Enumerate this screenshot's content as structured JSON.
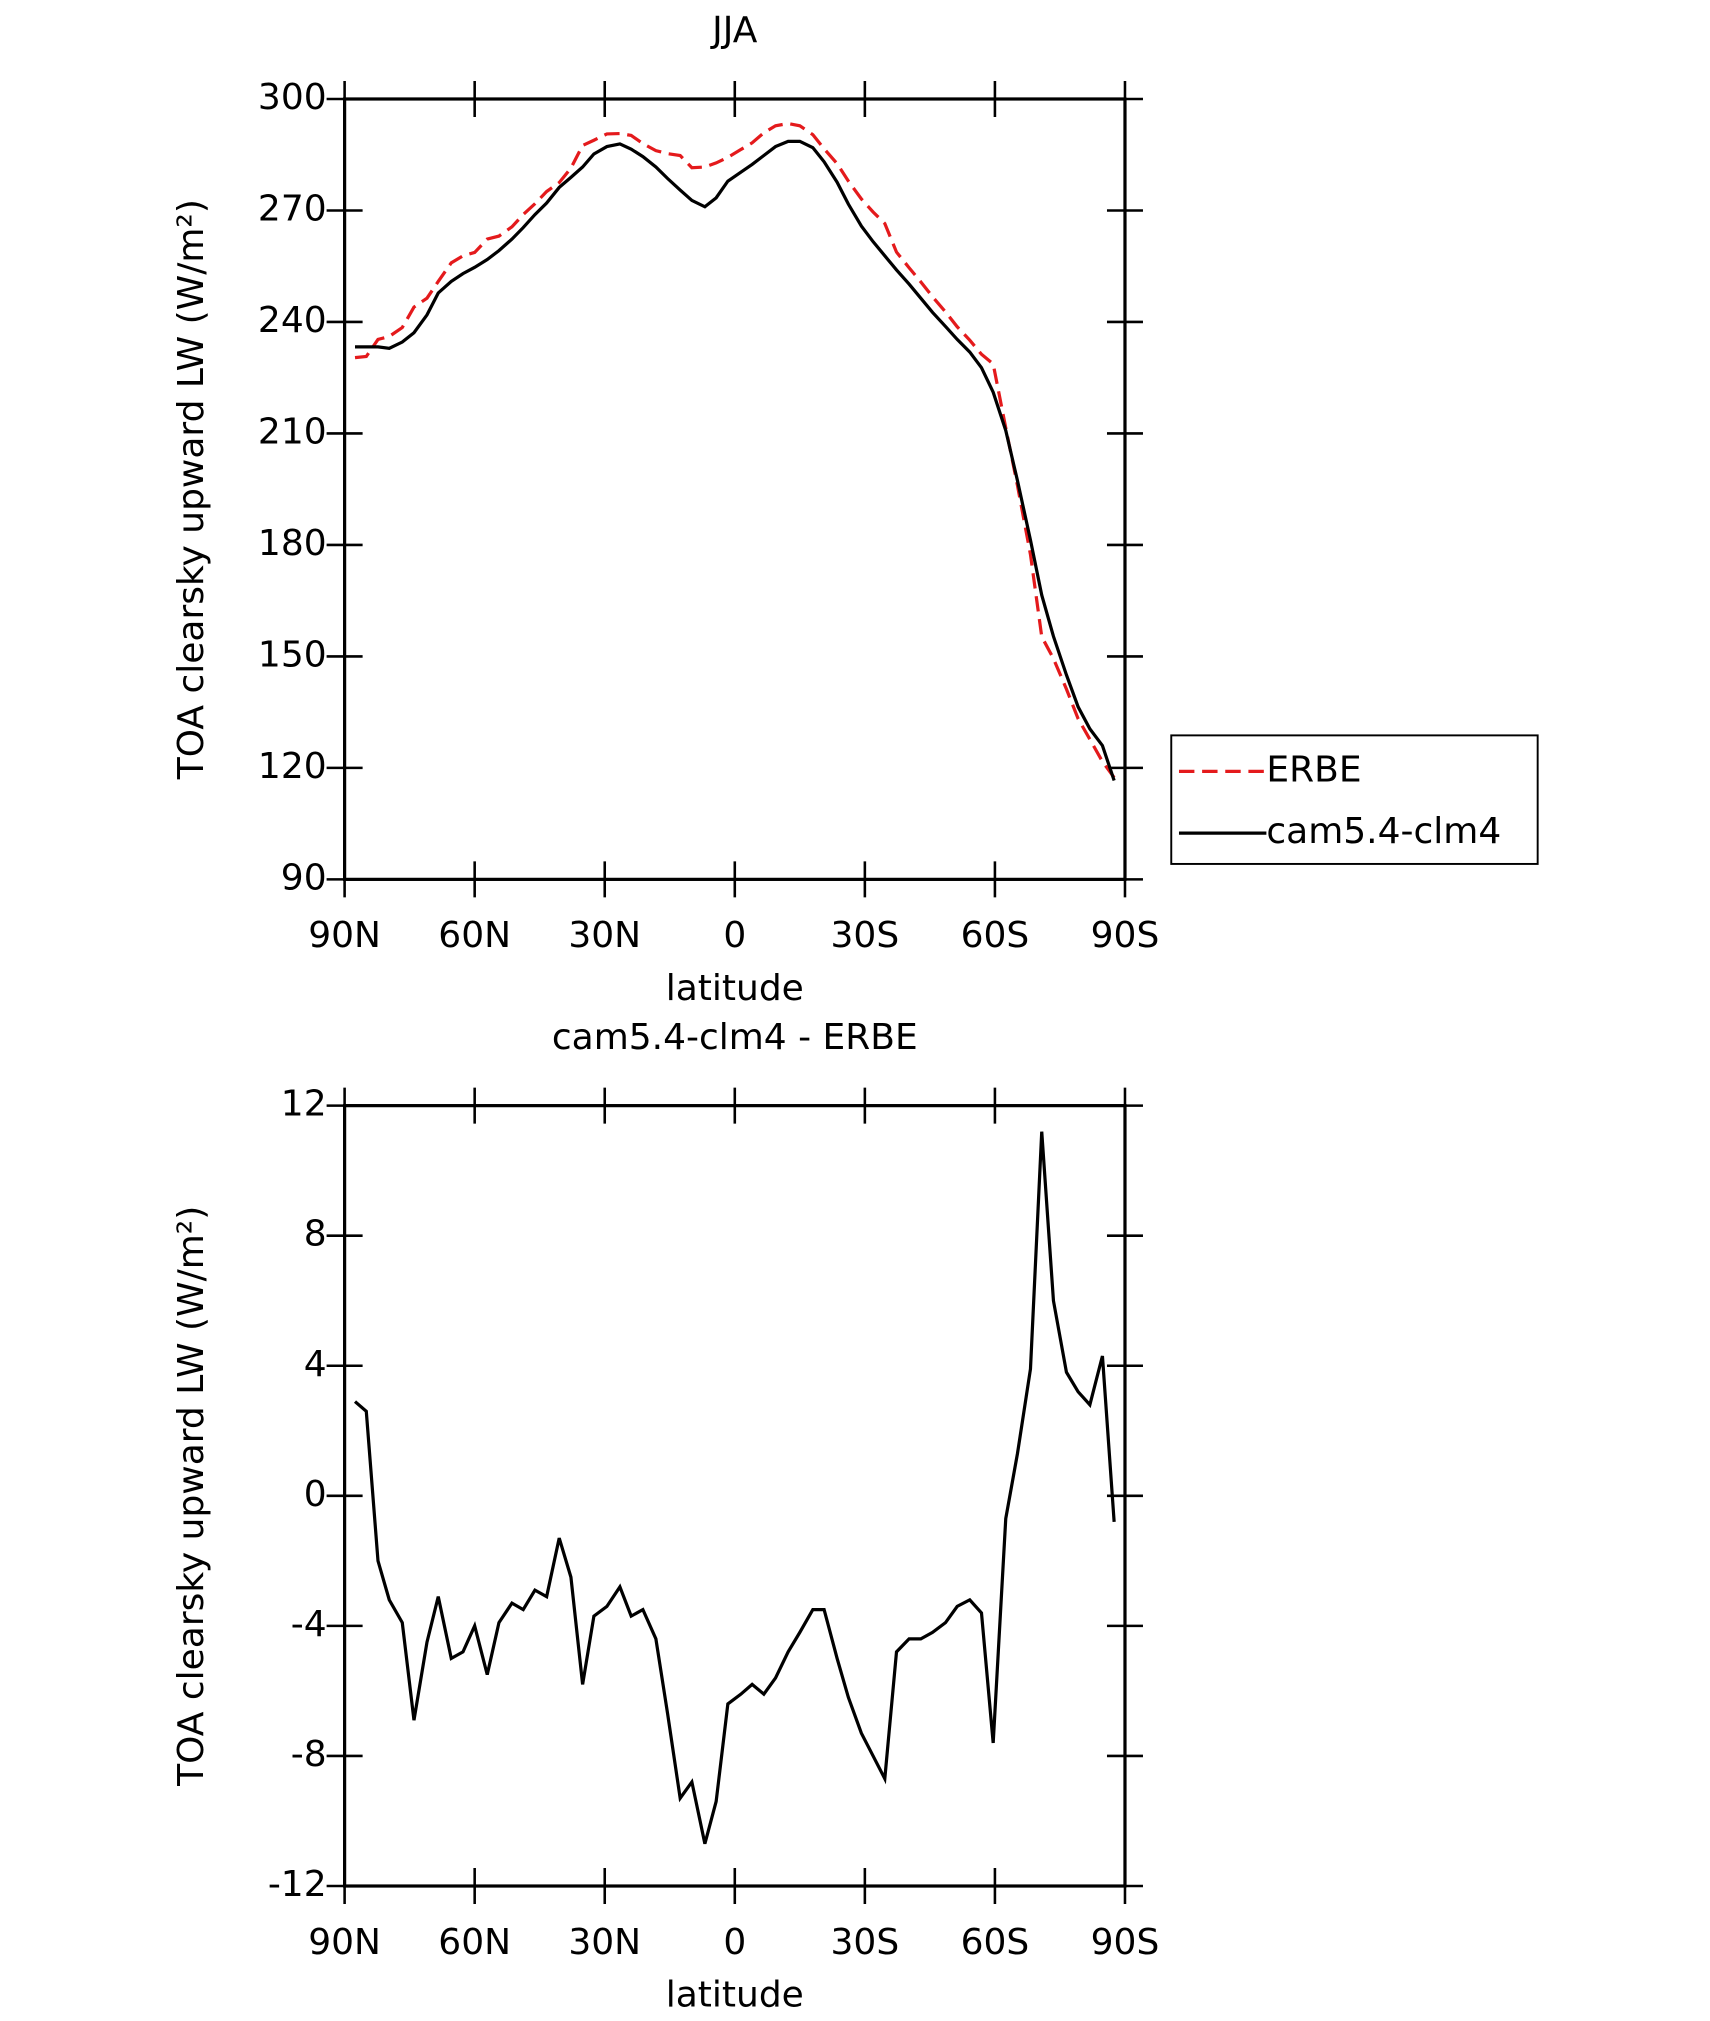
{
  "chart_data": [
    {
      "type": "line",
      "title": "JJA",
      "xlabel": "latitude",
      "ylabel": "TOA clearsky upward LW (W/m²)",
      "x": [
        87.6,
        85,
        82.3,
        79.7,
        76.7,
        74,
        71,
        68.4,
        65.4,
        62.7,
        60,
        57.1,
        54.4,
        51.4,
        48.8,
        46.1,
        43.4,
        40.5,
        37.8,
        35.1,
        32.5,
        29.5,
        26.5,
        23.9,
        21.2,
        18.2,
        15.5,
        12.6,
        9.9,
        6.9,
        4.3,
        1.6,
        -1.4,
        -4,
        -6.7,
        -9.4,
        -12.3,
        -15,
        -18,
        -20.6,
        -23.6,
        -26.2,
        -29.2,
        -31.9,
        -34.6,
        -37.3,
        -40.2,
        -42.9,
        -45.6,
        -48.6,
        -51.3,
        -54.2,
        -56.9,
        -59.6,
        -62.5,
        -65.2,
        -68.2,
        -70.8,
        -73.5,
        -76.5,
        -79.2,
        -81.9,
        -84.8,
        -87.5
      ],
      "series": [
        {
          "name": "ERBE",
          "color": "#e41a1c",
          "style": "dashed",
          "values": [
            230.4,
            230.7,
            235.3,
            236.1,
            238.5,
            244.0,
            246.4,
            250.9,
            255.9,
            257.8,
            258.7,
            262.3,
            263.1,
            265.6,
            268.9,
            271.8,
            275.1,
            277.5,
            281.4,
            287.5,
            288.9,
            290.6,
            290.7,
            290.2,
            288.0,
            286.1,
            285.3,
            284.8,
            281.5,
            281.7,
            282.8,
            284.3,
            286.4,
            288.2,
            290.9,
            292.8,
            293.4,
            292.8,
            290.4,
            286.6,
            282.6,
            277.9,
            273.1,
            269.6,
            266.5,
            258.8,
            254.6,
            250.8,
            246.8,
            242.7,
            238.7,
            235.1,
            231.3,
            228.7,
            211.5,
            196.0,
            177.4,
            155.3,
            149.4,
            141.2,
            133.2,
            127.7,
            121.7,
            117.4
          ]
        },
        {
          "name": "cam5.4-clm4",
          "color": "#000000",
          "style": "solid",
          "values": [
            233.3,
            233.3,
            233.3,
            232.9,
            234.6,
            237.1,
            241.9,
            247.8,
            250.9,
            253.0,
            254.7,
            256.8,
            259.2,
            262.3,
            265.4,
            268.9,
            272.0,
            276.2,
            278.9,
            281.7,
            285.2,
            287.2,
            287.9,
            286.5,
            284.5,
            281.7,
            278.6,
            275.5,
            272.7,
            271.0,
            273.4,
            277.9,
            280.3,
            282.4,
            284.8,
            287.2,
            288.6,
            288.6,
            286.9,
            283.1,
            277.6,
            271.7,
            265.8,
            261.6,
            257.8,
            254.0,
            250.2,
            246.4,
            242.6,
            238.8,
            235.3,
            231.9,
            227.7,
            221.1,
            210.8,
            197.3,
            181.3,
            166.5,
            155.4,
            145.0,
            136.4,
            130.5,
            126.0,
            116.6
          ]
        }
      ],
      "xlim": [
        90,
        -90
      ],
      "xticks": [
        {
          "value": 90,
          "label": "90N"
        },
        {
          "value": 60,
          "label": "60N"
        },
        {
          "value": 30,
          "label": "30N"
        },
        0,
        {
          "value": -30,
          "label": "30S"
        },
        {
          "value": -60,
          "label": "60S"
        },
        {
          "value": -90,
          "label": "90S"
        }
      ],
      "ylim": [
        90,
        300
      ],
      "yticks": [
        90,
        120,
        150,
        180,
        210,
        240,
        270,
        300
      ],
      "legend": "outside-right"
    },
    {
      "type": "line",
      "title": "cam5.4-clm4 - ERBE",
      "xlabel": "latitude",
      "ylabel": "TOA clearsky upward LW (W/m²)",
      "x": [
        87.6,
        85,
        82.3,
        79.7,
        76.7,
        74,
        71,
        68.4,
        65.4,
        62.7,
        60,
        57.1,
        54.4,
        51.4,
        48.8,
        46.1,
        43.4,
        40.5,
        37.8,
        35.1,
        32.5,
        29.5,
        26.5,
        23.9,
        21.2,
        18.2,
        15.5,
        12.6,
        9.9,
        6.9,
        4.3,
        1.6,
        -1.4,
        -4,
        -6.7,
        -9.4,
        -12.3,
        -15,
        -18,
        -20.6,
        -23.6,
        -26.2,
        -29.2,
        -31.9,
        -34.6,
        -37.3,
        -40.2,
        -42.9,
        -45.6,
        -48.6,
        -51.3,
        -54.2,
        -56.9,
        -59.6,
        -62.5,
        -65.2,
        -68.2,
        -70.8,
        -73.5,
        -76.5,
        -79.2,
        -81.9,
        -84.8,
        -87.5
      ],
      "color": "#000000",
      "values": [
        2.9,
        2.6,
        -2.0,
        -3.2,
        -3.9,
        -6.9,
        -4.5,
        -3.1,
        -5.0,
        -4.8,
        -4.0,
        -5.5,
        -3.9,
        -3.3,
        -3.5,
        -2.9,
        -3.1,
        -1.3,
        -2.5,
        -5.8,
        -3.7,
        -3.4,
        -2.8,
        -3.7,
        -3.5,
        -4.4,
        -6.7,
        -9.3,
        -8.8,
        -10.7,
        -9.4,
        -6.4,
        -6.1,
        -5.8,
        -6.1,
        -5.6,
        -4.8,
        -4.2,
        -3.5,
        -3.5,
        -5.0,
        -6.2,
        -7.3,
        -8.0,
        -8.7,
        -4.8,
        -4.4,
        -4.4,
        -4.2,
        -3.9,
        -3.4,
        -3.2,
        -3.6,
        -7.6,
        -0.7,
        1.3,
        3.9,
        11.2,
        6.0,
        3.8,
        3.2,
        2.8,
        4.3,
        -0.8
      ],
      "xlim": [
        90,
        -90
      ],
      "xticks": [
        {
          "value": 90,
          "label": "90N"
        },
        {
          "value": 60,
          "label": "60N"
        },
        {
          "value": 30,
          "label": "30N"
        },
        0,
        {
          "value": -30,
          "label": "30S"
        },
        {
          "value": -60,
          "label": "60S"
        },
        {
          "value": -90,
          "label": "90S"
        }
      ],
      "ylim": [
        -12,
        12
      ],
      "yticks": [
        -12,
        -8,
        -4,
        0,
        4,
        8,
        12
      ]
    }
  ]
}
